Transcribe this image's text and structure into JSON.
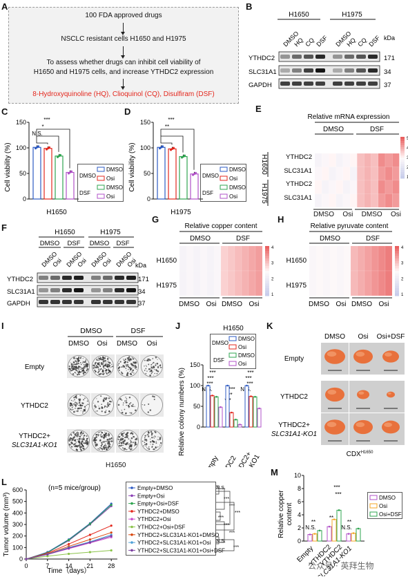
{
  "panels": {
    "A": {
      "label": "A",
      "lines": [
        "100 FDA approved drugs",
        "NSCLC resistant cells H1650 and H1975",
        "To assess whether drugs can inhibit cell viability of",
        "H1650 and H1975 cells, and increase YTHDC2 expression",
        "8-Hydroxyquinoline (HQ), Clioquinol (CQ),  Disulfiram (DSF)"
      ],
      "highlight_color": "#e3261c"
    },
    "B": {
      "label": "B",
      "groups": [
        "H1650",
        "H1975"
      ],
      "lanes": [
        "DMSO",
        "HQ",
        "CQ",
        "DSF"
      ],
      "kda": "kDa",
      "rows": [
        {
          "name": "YTHDC2",
          "kda": "171"
        },
        {
          "name": "SLC31A1",
          "kda": "34"
        },
        {
          "name": "GAPDH",
          "kda": "37"
        }
      ]
    },
    "C": {
      "label": "C",
      "ylabel": "Cell viability (%)",
      "xlabel": "H1650",
      "yticks": [
        "0",
        "50",
        "100",
        "150"
      ],
      "sig": [
        "N.S.",
        "*",
        "***"
      ]
    },
    "D": {
      "label": "D",
      "ylabel": "Cell viability (%)",
      "xlabel": "H1975",
      "yticks": [
        "0",
        "50",
        "100",
        "150"
      ],
      "sig": [
        "**",
        "***"
      ]
    },
    "legend_CD": {
      "groups": [
        "DMSO",
        "DSF"
      ],
      "items": [
        "DMSO",
        "Osi",
        "DMSO",
        "Osi"
      ]
    },
    "E": {
      "label": "E",
      "title": "Relative mRNA expression",
      "top_groups": [
        "DMSO",
        "DSF"
      ],
      "bottom_labels": [
        "DMSO",
        "Osi",
        "DMSO",
        "Osi"
      ],
      "row_groups": [
        "H1650",
        "H1975"
      ],
      "rows": [
        "YTHDC2",
        "SLC31A1",
        "YTHDC2",
        "SLC31A1"
      ],
      "scale": [
        "5",
        "4",
        "3",
        "2",
        "1"
      ]
    },
    "F": {
      "label": "F",
      "groups": [
        "H1650",
        "H1975"
      ],
      "sub_groups": [
        "DMSO",
        "DSF",
        "DMSO",
        "DSF"
      ],
      "lanes": [
        "DMSO",
        "Osi",
        "DMSO",
        "Osi",
        "DMSO",
        "Osi",
        "DMSO",
        "Osi"
      ],
      "kda": "kDa",
      "rows": [
        {
          "name": "YTHDC2",
          "kda": "171"
        },
        {
          "name": "SLC31A1",
          "kda": "34"
        },
        {
          "name": "GAPDH",
          "kda": "37"
        }
      ]
    },
    "G": {
      "label": "G",
      "title": "Relative copper content",
      "top_groups": [
        "DMSO",
        "DSF"
      ],
      "bottom_labels": [
        "DMSO",
        "Osi",
        "DMSO",
        "Osi"
      ],
      "rows": [
        "H1650",
        "H1975"
      ],
      "scale": [
        "4",
        "3",
        "2",
        "1"
      ]
    },
    "H": {
      "label": "H",
      "title": "Relative pyruvate content",
      "top_groups": [
        "DMSO",
        "DSF"
      ],
      "bottom_labels": [
        "DMSO",
        "Osi",
        "DMSO",
        "Osi"
      ],
      "rows": [
        "H1650",
        "H1975"
      ],
      "scale": [
        "4",
        "3",
        "2",
        "1"
      ]
    },
    "I": {
      "label": "I",
      "top_groups": [
        "DMSO",
        "DSF"
      ],
      "cols": [
        "DMSO",
        "Osi",
        "DMSO",
        "Osi"
      ],
      "rows": [
        "Empty",
        "YTHDC2",
        "YTHDC2+",
        "SLC31A1-KO1"
      ],
      "cell": "H1650"
    },
    "J": {
      "label": "J",
      "title": "H1650",
      "ylabel": "Relative colony numbers (%)",
      "yticks": [
        "0",
        "50",
        "100",
        "150"
      ],
      "xcats": [
        "Empty",
        "YTHDC2",
        "YTHDC2+",
        "SLC31A1-KO1"
      ],
      "legend_groups": [
        "DMSO",
        "DSF"
      ],
      "legend_items": [
        "DMSO",
        "Osi",
        "DMSO",
        "Osi"
      ],
      "sig": [
        "***",
        "***",
        "***",
        "N.S.",
        "***",
        "***",
        "***",
        "***",
        "***",
        "N.S.",
        "***"
      ]
    },
    "K": {
      "label": "K",
      "cols": [
        "DMSO",
        "Osi",
        "Osi+DSF"
      ],
      "rows": [
        "Empty",
        "YTHDC2",
        "YTHDC2+",
        "SLC31A1-KO1"
      ],
      "caption": "CDX",
      "caption_sup": "H1650"
    },
    "L": {
      "label": "L",
      "ylabel": "Tumor volume (mm³)",
      "xlabel": "Time（days）",
      "note": "(n=5 mice/group)",
      "yticks": [
        "0",
        "100",
        "200",
        "300",
        "400",
        "500",
        "600"
      ],
      "xticks": [
        "0",
        "7",
        "14",
        "21",
        "28"
      ],
      "legend": [
        "Empty+DMSO",
        "Empty+Osi",
        "Empty+Osi+DSF",
        "YTHDC2+DMSO",
        "YTHDC2+Osi",
        "YTHDC2+Osi+DSF",
        "YTHDC2+SLC31A1-KO1+DMSO",
        "YTHDC2+SLC31A1-KO1+Osi",
        "YTHDC2+SLC31A1-KO1+Osi+DSF"
      ],
      "sig": [
        "N.S.",
        "***",
        "***",
        "***",
        "***",
        "***",
        "***",
        "N.S.",
        "***"
      ]
    },
    "M": {
      "label": "M",
      "ylabel": "Relative copper content",
      "yticks": [
        "0",
        "2",
        "4",
        "6",
        "8",
        "10"
      ],
      "xcats": [
        "Empty",
        "YTHDC2",
        "YTHDC2",
        "+SLC31A1-KO1"
      ],
      "legend": [
        "DMSO",
        "Osi",
        "Osi+DSF"
      ],
      "sig": [
        "N.S.",
        "**",
        "**",
        "***",
        "***",
        "N.S.",
        "**"
      ]
    }
  },
  "watermark": "公众号 · 英拜生物",
  "chart_data": [
    {
      "type": "bar",
      "panel": "C",
      "categories": [
        "DMSO+DMSO",
        "DMSO+Osi",
        "DSF+DMSO",
        "DSF+Osi"
      ],
      "values": [
        101,
        99,
        84,
        52
      ],
      "ylim": [
        0,
        150
      ],
      "colors": [
        "#2b59c3",
        "#e3261c",
        "#2ea44f",
        "#b050c8"
      ],
      "ylabel": "Cell viability (%)",
      "xlabel": "H1650"
    },
    {
      "type": "bar",
      "panel": "D",
      "categories": [
        "DMSO+DMSO",
        "DMSO+Osi",
        "DSF+DMSO",
        "DSF+Osi"
      ],
      "values": [
        101,
        98,
        83,
        49
      ],
      "ylim": [
        0,
        150
      ],
      "colors": [
        "#2b59c3",
        "#e3261c",
        "#2ea44f",
        "#b050c8"
      ],
      "ylabel": "Cell viability (%)",
      "xlabel": "H1975"
    },
    {
      "type": "bar",
      "panel": "J",
      "categories": [
        "Empty",
        "YTHDC2",
        "YTHDC2+SLC31A1-KO1"
      ],
      "series": [
        {
          "name": "DMSO+DMSO",
          "values": [
            100,
            100,
            100
          ]
        },
        {
          "name": "DMSO+Osi",
          "values": [
            76,
            35,
            74
          ]
        },
        {
          "name": "DSF+DMSO",
          "values": [
            73,
            18,
            73
          ]
        },
        {
          "name": "DSF+Osi",
          "values": [
            48,
            6,
            45
          ]
        }
      ],
      "ylim": [
        0,
        150
      ],
      "ylabel": "Relative colony numbers (%)",
      "title": "H1650"
    },
    {
      "type": "line",
      "panel": "L",
      "x": [
        0,
        7,
        14,
        21,
        28
      ],
      "series": [
        {
          "name": "Empty+DMSO",
          "values": [
            0,
            60,
            170,
            310,
            480
          ]
        },
        {
          "name": "Empty+Osi",
          "values": [
            0,
            55,
            160,
            300,
            460
          ]
        },
        {
          "name": "Empty+Osi+DSF",
          "values": [
            0,
            55,
            165,
            305,
            470
          ]
        },
        {
          "name": "YTHDC2+DMSO",
          "values": [
            0,
            50,
            130,
            210,
            290
          ]
        },
        {
          "name": "YTHDC2+Osi",
          "values": [
            0,
            40,
            90,
            140,
            190
          ]
        },
        {
          "name": "YTHDC2+Osi+DSF",
          "values": [
            0,
            25,
            45,
            60,
            75
          ]
        },
        {
          "name": "YTHDC2+SLC31A1-KO1+DMSO",
          "values": [
            0,
            45,
            110,
            170,
            230
          ]
        },
        {
          "name": "YTHDC2+SLC31A1-KO1+Osi",
          "values": [
            0,
            42,
            100,
            150,
            210
          ]
        },
        {
          "name": "YTHDC2+SLC31A1-KO1+Osi+DSF",
          "values": [
            0,
            40,
            95,
            145,
            200
          ]
        }
      ],
      "colors": [
        "#2b59c3",
        "#8a3fb5",
        "#2ea44f",
        "#e3261c",
        "#c94fd0",
        "#8bc34a",
        "#d9480f",
        "#4ea0d8",
        "#7b3fa0"
      ],
      "xlim": [
        0,
        30
      ],
      "ylim": [
        0,
        600
      ],
      "xlabel": "Time（days）",
      "ylabel": "Tumor volume (mm³)"
    },
    {
      "type": "bar",
      "panel": "M",
      "categories": [
        "Empty",
        "YTHDC2",
        "YTHDC2+SLC31A1-KO1"
      ],
      "series": [
        {
          "name": "DMSO",
          "values": [
            1.0,
            2.2,
            1.1
          ]
        },
        {
          "name": "Osi",
          "values": [
            1.1,
            3.3,
            1.2
          ]
        },
        {
          "name": "Osi+DSF",
          "values": [
            1.6,
            4.7,
            1.9
          ]
        }
      ],
      "colors": [
        "#b050c8",
        "#f5a623",
        "#2ea44f"
      ],
      "ylim": [
        0,
        10
      ],
      "ylabel": "Relative copper content"
    }
  ]
}
